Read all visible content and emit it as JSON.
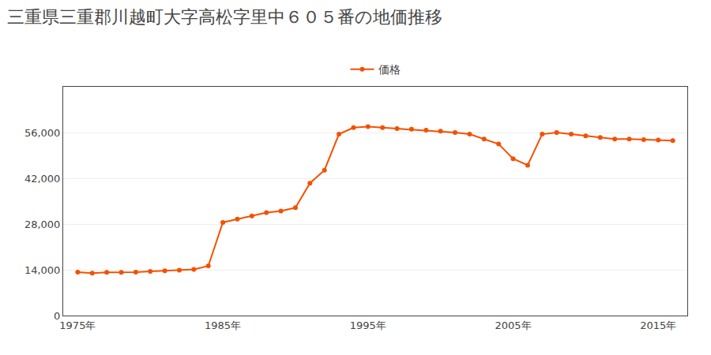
{
  "chart_data": {
    "type": "line",
    "title": "三重県三重郡川越町大字高松字里中６０５番の地価推移",
    "x": [
      1975,
      1976,
      1977,
      1978,
      1979,
      1980,
      1981,
      1982,
      1983,
      1984,
      1985,
      1986,
      1987,
      1988,
      1989,
      1990,
      1991,
      1992,
      1993,
      1994,
      1995,
      1996,
      1997,
      1998,
      1999,
      2000,
      2001,
      2002,
      2003,
      2004,
      2005,
      2006,
      2007,
      2008,
      2009,
      2010,
      2011,
      2012,
      2013,
      2014,
      2015,
      2016
    ],
    "series": [
      {
        "name": "価格",
        "color": "#f55000",
        "marker": "circle",
        "values": [
          13300,
          13000,
          13200,
          13200,
          13300,
          13500,
          13700,
          13900,
          14100,
          15200,
          28500,
          29500,
          30500,
          31500,
          32000,
          33000,
          40500,
          44500,
          55500,
          57500,
          57800,
          57500,
          57200,
          57000,
          56700,
          56400,
          56000,
          55500,
          54000,
          52500,
          48000,
          46000,
          55500,
          56000,
          55500,
          55000,
          54500,
          54000,
          54000,
          53800,
          53700,
          53500
        ]
      }
    ],
    "xlim": [
      1974,
      2017
    ],
    "xticks": [
      {
        "value": 1975,
        "label": "1975年"
      },
      {
        "value": 1985,
        "label": "1985年"
      },
      {
        "value": 1995,
        "label": "1995年"
      },
      {
        "value": 2005,
        "label": "2005年"
      },
      {
        "value": 2015,
        "label": "2015年"
      }
    ],
    "ylim": [
      0,
      70000
    ],
    "yticks": [
      0,
      {
        "value": 14000,
        "label": "14,000"
      },
      {
        "value": 28000,
        "label": "28,000"
      },
      {
        "value": 42000,
        "label": "42,000"
      },
      {
        "value": 56000,
        "label": "56,000"
      }
    ],
    "grid": "y",
    "legend": "top"
  }
}
